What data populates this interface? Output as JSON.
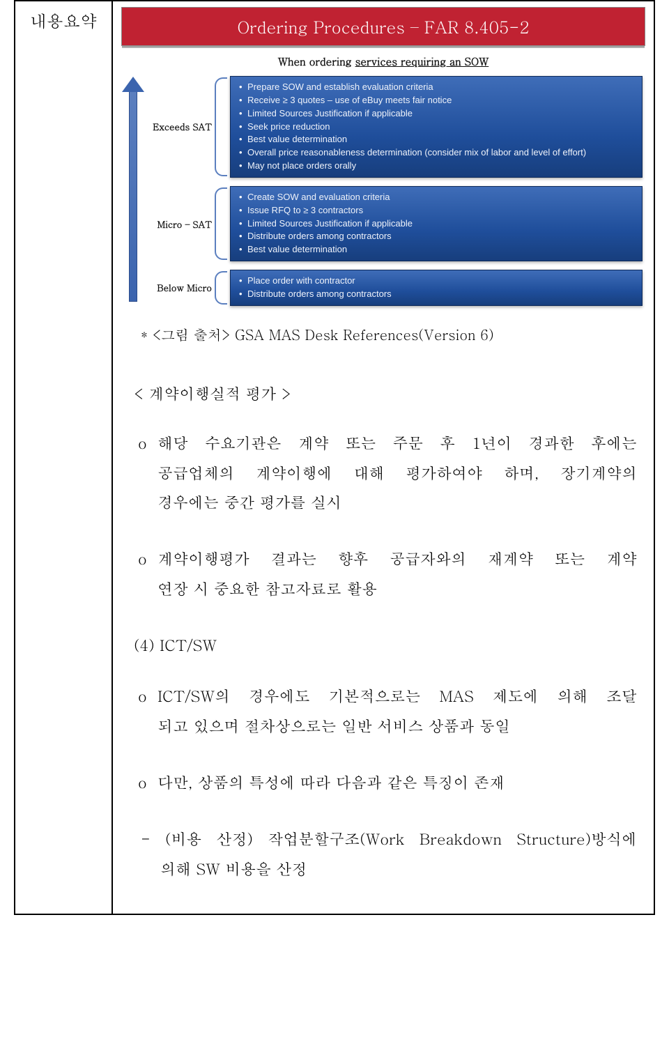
{
  "diagram": {
    "banner_title": "Ordering Procedures – FAR 8.405-2",
    "subtitle_prefix": "When ordering ",
    "subtitle_underline": "services requiring an SOW",
    "banner_bg": "#c02232",
    "banner_text_color": "#ffffff",
    "box_gradient_top": "#3f6db8",
    "box_gradient_bottom": "#173e7d",
    "arrow_color": "#3b64ae",
    "tiers": [
      {
        "label": "Exceeds SAT",
        "items": [
          "Prepare SOW and establish evaluation criteria",
          "Receive ≥ 3 quotes – use of eBuy meets fair notice",
          "Limited Sources Justification if applicable",
          "Seek price reduction",
          "Best value determination",
          "Overall price reasonableness determination (consider mix of labor and level of effort)",
          "May not place orders orally"
        ]
      },
      {
        "label": "Micro – SAT",
        "items": [
          "Create SOW and evaluation criteria",
          "Issue RFQ to ≥ 3 contractors",
          "Limited Sources Justification if applicable",
          "Distribute orders among contractors",
          "Best value determination"
        ]
      },
      {
        "label": "Below Micro",
        "items": [
          "Place order with contractor",
          "Distribute orders among contractors"
        ]
      }
    ]
  },
  "caption": "* <그림 출처> GSA MAS Desk References(Version 6)",
  "label_cell": "내용요약",
  "section_title": "< 계약이행실적 평가 >",
  "p1_l1": "해당 수요기관은 계약 또는 주문 후 1년이 경과한 후에는",
  "p1_l2": "공급업체의 계약이행에 대해 평가하여야 하며, 장기계약의",
  "p1_l3": "경우에는 중간 평가를 실시",
  "p2_l1": "계약이행평가 결과는 향후 공급자와의 재계약 또는 계약",
  "p2_l2": "연장 시 중요한 참고자료로 활용",
  "section4": "(4) ICT/SW",
  "p3_l1": "ICT/SW의 경우에도 기본적으로는 MAS 제도에 의해 조달",
  "p3_l2": "되고 있으며 절차상으로는 일반 서비스 상품과 동일",
  "p4": "다만, 상품의 특성에 따라 다음과 같은 특징이 존재",
  "p5_l1": "- (비용 산정) 작업분할구조(Work Breakdown Structure)방식에",
  "p5_l2": "의해 SW 비용을 산정",
  "bullet_mark": "o"
}
